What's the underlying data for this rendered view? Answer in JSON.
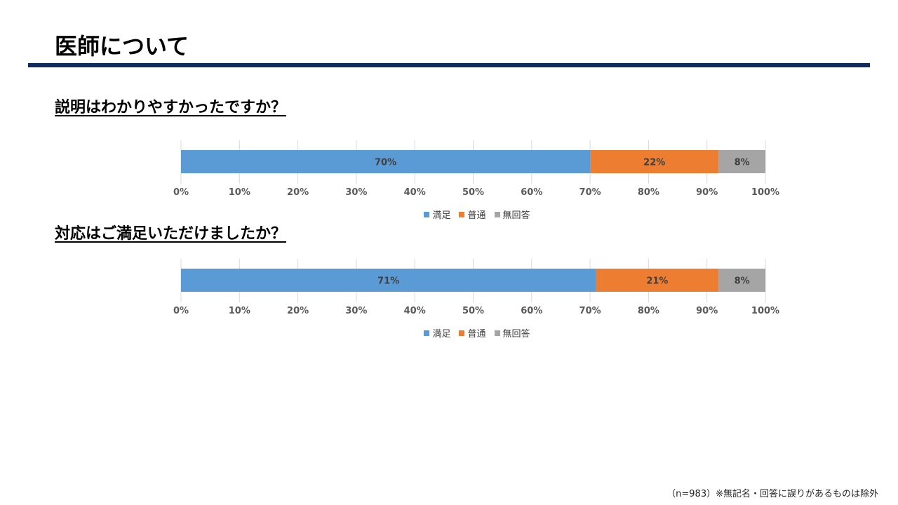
{
  "header": {
    "title": "医師について"
  },
  "footnote": "（n=983）※無記名・回答に誤りがあるものは除外",
  "colors": {
    "満足": "#5b9bd5",
    "普通": "#ed7d31",
    "無回答": "#a5a5a5",
    "title_rule": "#0e2a5e"
  },
  "chart_data": [
    {
      "type": "bar",
      "orientation": "horizontal",
      "stacked": "percent",
      "title": "説明はわかりやすかったですか？",
      "categories": [
        ""
      ],
      "series": [
        {
          "name": "満足",
          "values": [
            70
          ],
          "label": "70%"
        },
        {
          "name": "普通",
          "values": [
            22
          ],
          "label": "22%"
        },
        {
          "name": "無回答",
          "values": [
            8
          ],
          "label": "8%"
        }
      ],
      "xlim": [
        0,
        100
      ],
      "xticks": [
        "0%",
        "10%",
        "20%",
        "30%",
        "40%",
        "50%",
        "60%",
        "70%",
        "80%",
        "90%",
        "100%"
      ],
      "grid": true,
      "legend": "bottom"
    },
    {
      "type": "bar",
      "orientation": "horizontal",
      "stacked": "percent",
      "title": "対応はご満足いただけましたか？",
      "categories": [
        ""
      ],
      "series": [
        {
          "name": "満足",
          "values": [
            71
          ],
          "label": "71%"
        },
        {
          "name": "普通",
          "values": [
            21
          ],
          "label": "21%"
        },
        {
          "name": "無回答",
          "values": [
            8
          ],
          "label": "8%"
        }
      ],
      "xlim": [
        0,
        100
      ],
      "xticks": [
        "0%",
        "10%",
        "20%",
        "30%",
        "40%",
        "50%",
        "60%",
        "70%",
        "80%",
        "90%",
        "100%"
      ],
      "grid": true,
      "legend": "bottom"
    }
  ]
}
